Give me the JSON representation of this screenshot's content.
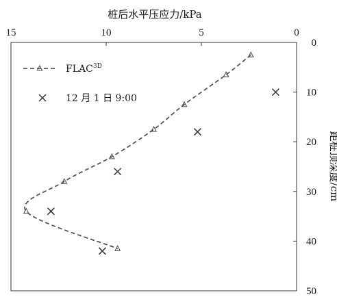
{
  "chart_data": {
    "type": "scatter",
    "xlabel": "桩后水平压应力/kPa",
    "ylabel": "距桩顶深度/cm",
    "xlim": [
      15,
      0
    ],
    "ylim": [
      0,
      50
    ],
    "x_ticks": [
      "15",
      "10",
      "5",
      "0"
    ],
    "y_ticks": [
      "0",
      "10",
      "20",
      "30",
      "40",
      "50"
    ],
    "x_tick_values": [
      15,
      10,
      5,
      0
    ],
    "y_tick_values": [
      0,
      10,
      20,
      30,
      40,
      50
    ],
    "x_axis_position": "top",
    "y_axis_position": "right",
    "grid": false,
    "legend_position": "top-left",
    "series": [
      {
        "name": "FLAC",
        "name_sup": "3D",
        "style": "dashed-line-triangle",
        "color": "#555555",
        "x": [
          2.4,
          3.7,
          5.9,
          7.5,
          9.7,
          12.2,
          14.2,
          9.4
        ],
        "y": [
          2.5,
          6.5,
          12.5,
          17.5,
          23,
          28,
          34,
          41.5
        ]
      },
      {
        "name": "12 月 1 日 9:00",
        "style": "cross-marker",
        "color": "#333333",
        "x": [
          1.1,
          5.2,
          9.4,
          12.9,
          10.2
        ],
        "y": [
          10,
          18,
          26,
          34,
          42
        ]
      }
    ]
  }
}
